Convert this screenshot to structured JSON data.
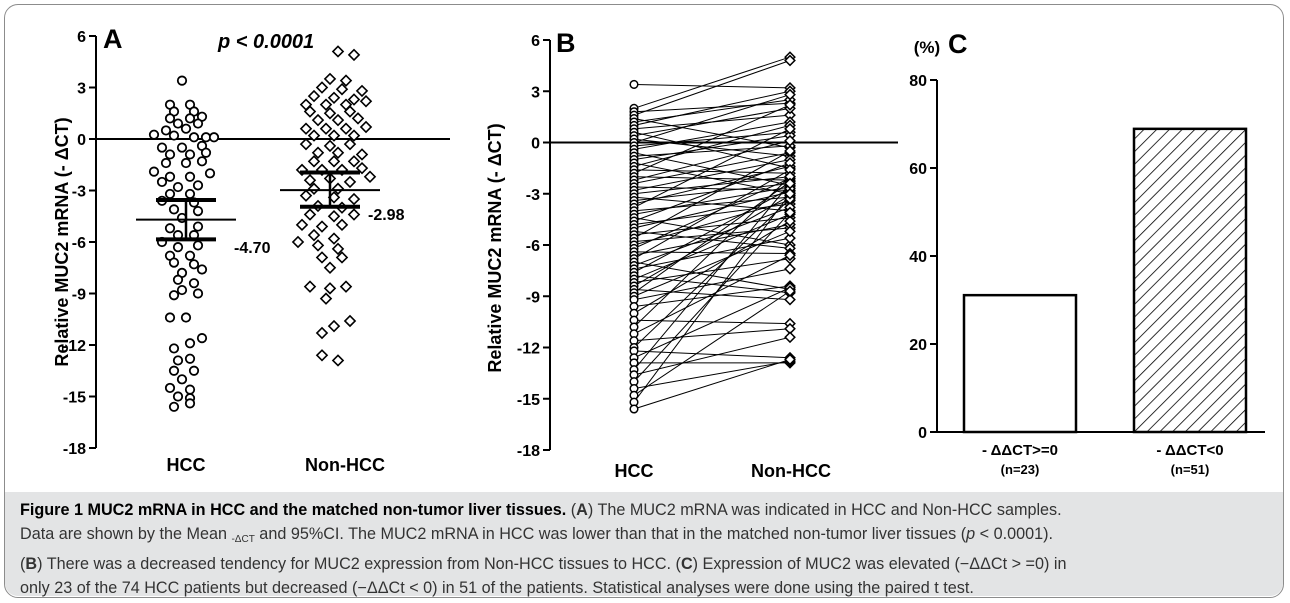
{
  "chart_data": [
    {
      "type": "scatter",
      "panel_label": "A",
      "annotation": "p < 0.0001",
      "ylabel": "Relative MUC2 mRNA (- ΔCT)",
      "ylim": [
        -18,
        6
      ],
      "yticks": [
        "6",
        "3",
        "0",
        "-3",
        "-6",
        "-9",
        "-12",
        "-15",
        "-18"
      ],
      "categories": [
        "HCC",
        "Non-HCC"
      ],
      "series": [
        {
          "category": "HCC",
          "mean": -4.7,
          "mean_label": "-4.70",
          "ci": [
            -5.85,
            -3.55
          ],
          "points": [
            [
              -0.05,
              3.4
            ],
            [
              -0.2,
              2.0
            ],
            [
              0.05,
              2.0
            ],
            [
              -0.15,
              1.6
            ],
            [
              0.1,
              1.6
            ],
            [
              -0.2,
              1.2
            ],
            [
              0.05,
              1.2
            ],
            [
              0.2,
              1.3
            ],
            [
              -0.1,
              0.9
            ],
            [
              0.15,
              0.9
            ],
            [
              -0.25,
              0.5
            ],
            [
              0.0,
              0.6
            ],
            [
              -0.4,
              0.25
            ],
            [
              -0.15,
              0.2
            ],
            [
              0.1,
              0.1
            ],
            [
              0.25,
              0.1
            ],
            [
              0.35,
              0.1
            ],
            [
              -0.3,
              -0.5
            ],
            [
              -0.05,
              -0.5
            ],
            [
              0.2,
              -0.4
            ],
            [
              -0.2,
              -0.9
            ],
            [
              0.05,
              -0.9
            ],
            [
              0.25,
              -0.8
            ],
            [
              -0.25,
              -1.4
            ],
            [
              0.0,
              -1.4
            ],
            [
              0.2,
              -1.3
            ],
            [
              -0.4,
              -1.9
            ],
            [
              -0.2,
              -2.2
            ],
            [
              0.05,
              -2.2
            ],
            [
              0.3,
              -2.0
            ],
            [
              -0.3,
              -2.5
            ],
            [
              -0.1,
              -2.8
            ],
            [
              0.15,
              -2.7
            ],
            [
              -0.2,
              -3.2
            ],
            [
              0.05,
              -3.2
            ],
            [
              -0.3,
              -3.6
            ],
            [
              0.1,
              -3.7
            ],
            [
              -0.15,
              -4.1
            ],
            [
              0.15,
              -4.2
            ],
            [
              -0.05,
              -4.6
            ],
            [
              -0.2,
              -5.2
            ],
            [
              0.15,
              -5.1
            ],
            [
              -0.1,
              -5.6
            ],
            [
              0.1,
              -5.6
            ],
            [
              -0.3,
              -6.0
            ],
            [
              -0.1,
              -6.3
            ],
            [
              0.15,
              -6.2
            ],
            [
              -0.2,
              -6.8
            ],
            [
              0.05,
              -6.8
            ],
            [
              -0.15,
              -7.2
            ],
            [
              0.1,
              -7.3
            ],
            [
              -0.05,
              -7.8
            ],
            [
              0.2,
              -7.6
            ],
            [
              -0.1,
              -8.2
            ],
            [
              0.1,
              -8.4
            ],
            [
              -0.05,
              -8.8
            ],
            [
              0.15,
              -9.0
            ],
            [
              -0.15,
              -9.1
            ],
            [
              -0.2,
              -10.4
            ],
            [
              0.0,
              -10.4
            ],
            [
              0.2,
              -11.6
            ],
            [
              0.05,
              -11.9
            ],
            [
              -0.15,
              -12.2
            ],
            [
              -0.1,
              -12.9
            ],
            [
              0.05,
              -12.8
            ],
            [
              -0.15,
              -13.5
            ],
            [
              0.1,
              -13.5
            ],
            [
              -0.05,
              -14.0
            ],
            [
              -0.2,
              -14.5
            ],
            [
              0.05,
              -14.6
            ],
            [
              -0.1,
              -15.0
            ],
            [
              0.05,
              -15.1
            ],
            [
              -0.15,
              -15.6
            ],
            [
              0.05,
              -15.4
            ]
          ]
        },
        {
          "category": "Non-HCC",
          "mean": -2.98,
          "mean_label": "-2.98",
          "ci": [
            -3.95,
            -1.95
          ],
          "points": [
            [
              0.1,
              5.1
            ],
            [
              0.3,
              4.9
            ],
            [
              0.0,
              3.5
            ],
            [
              0.2,
              3.4
            ],
            [
              -0.1,
              3.0
            ],
            [
              0.15,
              2.9
            ],
            [
              0.4,
              2.8
            ],
            [
              -0.2,
              2.5
            ],
            [
              0.05,
              2.4
            ],
            [
              0.3,
              2.3
            ],
            [
              -0.3,
              2.0
            ],
            [
              -0.05,
              2.0
            ],
            [
              0.2,
              2.0
            ],
            [
              0.45,
              2.2
            ],
            [
              -0.25,
              1.6
            ],
            [
              0.0,
              1.5
            ],
            [
              0.25,
              1.6
            ],
            [
              -0.15,
              1.1
            ],
            [
              0.1,
              1.1
            ],
            [
              0.35,
              1.2
            ],
            [
              -0.3,
              0.6
            ],
            [
              -0.05,
              0.6
            ],
            [
              0.2,
              0.6
            ],
            [
              0.45,
              0.7
            ],
            [
              -0.2,
              0.2
            ],
            [
              0.05,
              0.2
            ],
            [
              0.3,
              0.2
            ],
            [
              -0.3,
              -0.3
            ],
            [
              0.0,
              -0.4
            ],
            [
              0.25,
              -0.3
            ],
            [
              -0.15,
              -0.8
            ],
            [
              0.1,
              -0.8
            ],
            [
              0.4,
              -0.9
            ],
            [
              -0.2,
              -1.3
            ],
            [
              0.05,
              -1.3
            ],
            [
              0.3,
              -1.3
            ],
            [
              -0.35,
              -1.8
            ],
            [
              -0.1,
              -1.8
            ],
            [
              0.15,
              -1.8
            ],
            [
              0.4,
              -1.7
            ],
            [
              -0.25,
              -2.4
            ],
            [
              0.0,
              -2.3
            ],
            [
              0.25,
              -2.5
            ],
            [
              0.5,
              -2.2
            ],
            [
              -0.2,
              -2.9
            ],
            [
              0.1,
              -2.9
            ],
            [
              -0.3,
              -3.3
            ],
            [
              0.05,
              -3.4
            ],
            [
              0.3,
              -3.5
            ],
            [
              -0.15,
              -3.9
            ],
            [
              0.15,
              -4.0
            ],
            [
              -0.25,
              -4.4
            ],
            [
              0.05,
              -4.5
            ],
            [
              0.3,
              -4.4
            ],
            [
              -0.35,
              -5.0
            ],
            [
              -0.1,
              -5.1
            ],
            [
              0.15,
              -5.0
            ],
            [
              -0.2,
              -5.6
            ],
            [
              0.05,
              -5.8
            ],
            [
              -0.4,
              -6.0
            ],
            [
              -0.15,
              -6.2
            ],
            [
              0.1,
              -6.4
            ],
            [
              -0.1,
              -6.9
            ],
            [
              0.15,
              -6.9
            ],
            [
              0.0,
              -7.5
            ],
            [
              -0.25,
              -8.6
            ],
            [
              0.0,
              -8.7
            ],
            [
              0.2,
              -8.6
            ],
            [
              -0.05,
              -9.3
            ],
            [
              0.25,
              -10.6
            ],
            [
              0.05,
              -10.9
            ],
            [
              -0.1,
              -11.3
            ],
            [
              0.1,
              -12.9
            ],
            [
              -0.1,
              -12.6
            ]
          ]
        }
      ],
      "grid": false
    },
    {
      "type": "line",
      "panel_label": "B",
      "ylabel": "Relative MUC2 mRNA (- ΔCT)",
      "ylim": [
        -18,
        6
      ],
      "yticks": [
        "6",
        "3",
        "0",
        "-3",
        "-6",
        "-9",
        "-12",
        "-15",
        "-18"
      ],
      "categories": [
        "HCC",
        "Non-HCC"
      ],
      "pairs": [
        [
          3.4,
          3.2
        ],
        [
          2.0,
          5.0
        ],
        [
          1.8,
          2.3
        ],
        [
          1.6,
          4.8
        ],
        [
          1.4,
          -0.3
        ],
        [
          1.2,
          2.5
        ],
        [
          1.0,
          3.0
        ],
        [
          0.8,
          1.6
        ],
        [
          0.6,
          -1.5
        ],
        [
          0.4,
          2.0
        ],
        [
          0.2,
          -0.8
        ],
        [
          0.0,
          2.8
        ],
        [
          -0.2,
          0.6
        ],
        [
          -0.4,
          1.2
        ],
        [
          -0.6,
          -2.5
        ],
        [
          -0.8,
          -0.2
        ],
        [
          -1.0,
          0.4
        ],
        [
          -1.2,
          -3.0
        ],
        [
          -1.4,
          1.0
        ],
        [
          -1.6,
          -1.8
        ],
        [
          -1.8,
          2.2
        ],
        [
          -2.0,
          -2.2
        ],
        [
          -2.2,
          0.1
        ],
        [
          -2.4,
          -0.6
        ],
        [
          -2.6,
          -2.8
        ],
        [
          -2.8,
          -1.0
        ],
        [
          -3.0,
          -2.0
        ],
        [
          -3.2,
          -4.0
        ],
        [
          -3.4,
          -2.4
        ],
        [
          -3.6,
          -1.4
        ],
        [
          -3.8,
          0.8
        ],
        [
          -4.0,
          -3.2
        ],
        [
          -4.2,
          -2.6
        ],
        [
          -4.4,
          -6.0
        ],
        [
          -4.6,
          -1.2
        ],
        [
          -4.8,
          -3.6
        ],
        [
          -5.0,
          -2.9
        ],
        [
          -5.2,
          -6.2
        ],
        [
          -5.4,
          -4.4
        ],
        [
          -5.6,
          -0.5
        ],
        [
          -5.8,
          -5.0
        ],
        [
          -6.0,
          -3.4
        ],
        [
          -6.2,
          -2.1
        ],
        [
          -6.4,
          -6.5
        ],
        [
          -6.6,
          -4.8
        ],
        [
          -6.8,
          -1.6
        ],
        [
          -7.0,
          -8.6
        ],
        [
          -7.2,
          -3.8
        ],
        [
          -7.4,
          -5.6
        ],
        [
          -7.6,
          -2.7
        ],
        [
          -7.8,
          -8.8
        ],
        [
          -8.0,
          -4.2
        ],
        [
          -8.2,
          -6.8
        ],
        [
          -8.4,
          -3.1
        ],
        [
          -8.6,
          -9.2
        ],
        [
          -8.8,
          -2.3
        ],
        [
          -9.0,
          -5.2
        ],
        [
          -9.2,
          -7.4
        ],
        [
          -9.6,
          -8.4
        ],
        [
          -10.0,
          -4.6
        ],
        [
          -10.4,
          -10.6
        ],
        [
          -10.8,
          -2.0
        ],
        [
          -11.2,
          -6.6
        ],
        [
          -11.6,
          -10.9
        ],
        [
          -12.0,
          -3.3
        ],
        [
          -12.2,
          -12.6
        ],
        [
          -12.6,
          -8.5
        ],
        [
          -12.9,
          -12.9
        ],
        [
          -13.3,
          -2.4
        ],
        [
          -13.6,
          -11.4
        ],
        [
          -14.0,
          -4.1
        ],
        [
          -14.4,
          -12.8
        ],
        [
          -14.8,
          -8.7
        ],
        [
          -15.2,
          -3.0
        ],
        [
          -15.6,
          -12.7
        ]
      ],
      "grid": false
    },
    {
      "type": "bar",
      "panel_label": "C",
      "ylabel": "(%)",
      "ylim": [
        0,
        80
      ],
      "yticks": [
        "80",
        "60",
        "40",
        "20",
        "0"
      ],
      "categories": [
        "- ΔΔCT>=0",
        "- ΔΔCT<0"
      ],
      "category_notes": [
        "(n=23)",
        "(n=51)"
      ],
      "values": [
        31.1,
        68.9
      ],
      "fills": [
        "white",
        "hatched"
      ],
      "grid": false
    }
  ],
  "caption": {
    "title": "Figure 1 MUC2 mRNA in HCC and the matched non-tumor liver tissues.",
    "lines": [
      [
        "(",
        "A",
        ") The MUC2 mRNA was indicated in HCC and Non-HCC samples."
      ],
      [
        "Data are shown by the Mean ",
        "-ΔCT",
        " and 95%CI. The MUC2 mRNA in HCC was lower than that in the matched non-tumor liver tissues (",
        "p",
        " < 0.0001)."
      ],
      [
        "(",
        "B",
        ") There was a decreased tendency for MUC2 expression from Non-HCC tissues to HCC. (",
        "C",
        ") Expression of MUC2 was elevated (−ΔΔCt > =0) in"
      ],
      [
        "only 23 of the 74 HCC patients but decreased (−ΔΔCt < 0) in 51 of the patients. Statistical analyses were done using the paired t test."
      ]
    ]
  }
}
